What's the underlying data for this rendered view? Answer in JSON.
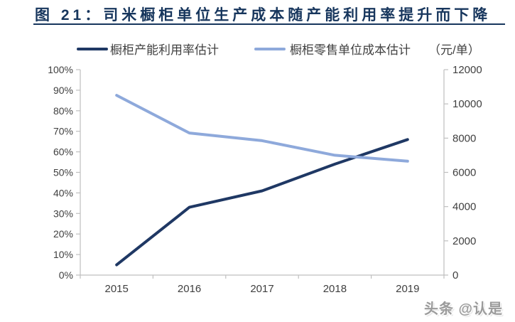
{
  "title": {
    "text": "图 21：司米橱柜单位生产成本随产能利用率提升而下降"
  },
  "watermark": {
    "text": "头条 @认是"
  },
  "colors": {
    "accent_navy": "#17365D",
    "axis_line": "#BFBFBF",
    "tick_text": "#3F3F3F",
    "watermark_gray": "#9B9B9B"
  },
  "chart_data": {
    "type": "line",
    "title": "司米橱柜单位生产成本随产能利用率提升而下降",
    "categories": [
      "2015",
      "2016",
      "2017",
      "2018",
      "2019"
    ],
    "series": [
      {
        "name": "橱柜产能利用率估计",
        "axis": "left",
        "color": "#1F3864",
        "values": [
          5,
          33,
          41,
          54,
          66
        ],
        "unit": "%"
      },
      {
        "name": "橱柜零售单位成本估计",
        "axis": "right",
        "color": "#8EA9DB",
        "values": [
          10500,
          8300,
          7850,
          7000,
          6650
        ],
        "unit": "元/单"
      }
    ],
    "left_axis": {
      "min": 0,
      "max": 100,
      "step": 10,
      "tick_labels": [
        "0%",
        "10%",
        "20%",
        "30%",
        "40%",
        "50%",
        "60%",
        "70%",
        "80%",
        "90%",
        "100%"
      ]
    },
    "right_axis": {
      "min": 0,
      "max": 12000,
      "step": 2000,
      "tick_labels": [
        "0",
        "2000",
        "4000",
        "6000",
        "8000",
        "10000",
        "12000"
      ],
      "unit_label": "（元/单）"
    },
    "grid": false,
    "legend_position": "top"
  }
}
